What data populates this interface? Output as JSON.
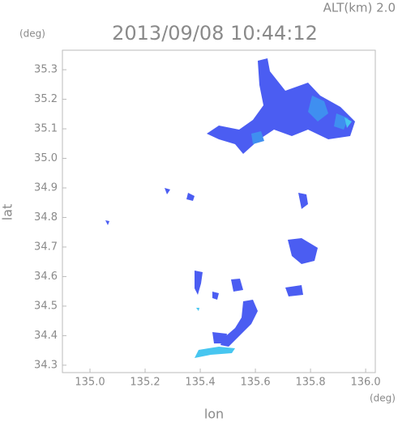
{
  "chart_data": {
    "type": "radar-map",
    "title": "2013/09/08 10:44:12",
    "subtitle": "ALT(km) 2.0",
    "xlabel": "lon",
    "ylabel": "lat",
    "x_unit": "(deg)",
    "y_unit": "(deg)",
    "xlim": [
      134.9,
      136.035
    ],
    "ylim": [
      34.275,
      35.366
    ],
    "xticks": [
      {
        "value": 135.0,
        "label": "135.0"
      },
      135.2,
      135.4,
      135.6,
      135.8,
      {
        "value": 136.0,
        "label": "136.0"
      }
    ],
    "yticks": [
      35.3,
      35.2,
      35.1,
      {
        "value": 35.0,
        "label": "35.0"
      },
      34.9,
      34.8,
      34.7,
      34.6,
      34.5,
      34.4,
      34.3
    ]
  }
}
